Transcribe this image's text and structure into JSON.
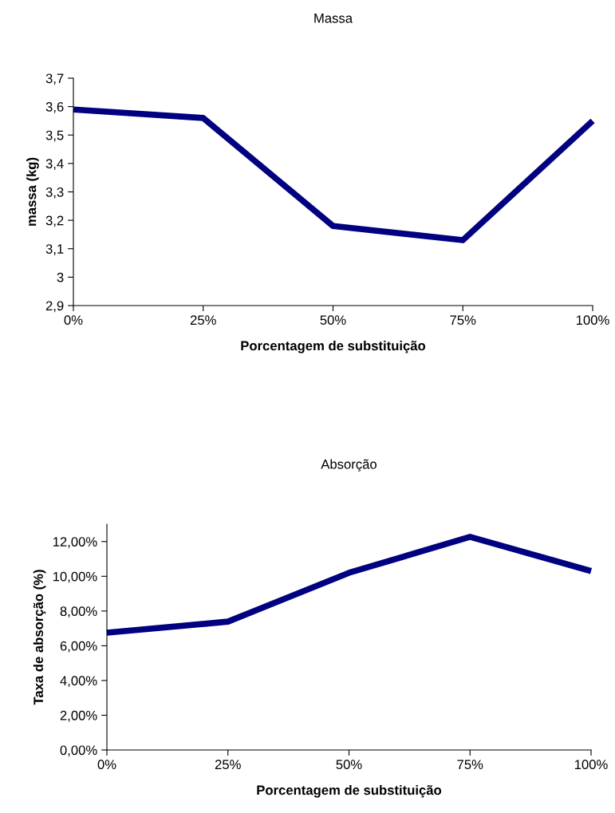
{
  "chart_data": [
    {
      "type": "line",
      "title": "Massa",
      "xlabel": "Porcentagem de substituição",
      "ylabel": "massa (kg)",
      "categories": [
        "0%",
        "25%",
        "50%",
        "75%",
        "100%"
      ],
      "series": [
        {
          "color": "#000080",
          "values": [
            3.59,
            3.56,
            3.18,
            3.13,
            3.55
          ]
        }
      ],
      "ylim": [
        2.9,
        3.7
      ],
      "yticks": [
        {
          "value": 2.9,
          "label": "2,9"
        },
        {
          "value": 3.0,
          "label": "3"
        },
        {
          "value": 3.1,
          "label": "3,1"
        },
        {
          "value": 3.2,
          "label": "3,2"
        },
        {
          "value": 3.3,
          "label": "3,3"
        },
        {
          "value": 3.4,
          "label": "3,4"
        },
        {
          "value": 3.5,
          "label": "3,5"
        },
        {
          "value": 3.6,
          "label": "3,6"
        },
        {
          "value": 3.7,
          "label": "3,7"
        }
      ],
      "grid": false,
      "legend": false,
      "marker": "none",
      "line_style": "solid"
    },
    {
      "type": "line",
      "title": "Absorção",
      "xlabel": "Porcentagem de substituição",
      "ylabel": "Taxa de absorção (%)",
      "categories": [
        "0%",
        "25%",
        "50%",
        "75%",
        "100%"
      ],
      "series": [
        {
          "color": "#000080",
          "values": [
            6.75,
            7.39,
            10.2,
            12.27,
            10.3
          ]
        }
      ],
      "ylim": [
        0,
        13
      ],
      "yticks": [
        {
          "value": 0,
          "label": "0,00%"
        },
        {
          "value": 2,
          "label": "2,00%"
        },
        {
          "value": 4,
          "label": "4,00%"
        },
        {
          "value": 6,
          "label": "6,00%"
        },
        {
          "value": 8,
          "label": "8,00%"
        },
        {
          "value": 10,
          "label": "10,00%"
        },
        {
          "value": 12,
          "label": "12,00%"
        }
      ],
      "grid": false,
      "legend": false,
      "marker": "none",
      "line_style": "solid"
    }
  ]
}
